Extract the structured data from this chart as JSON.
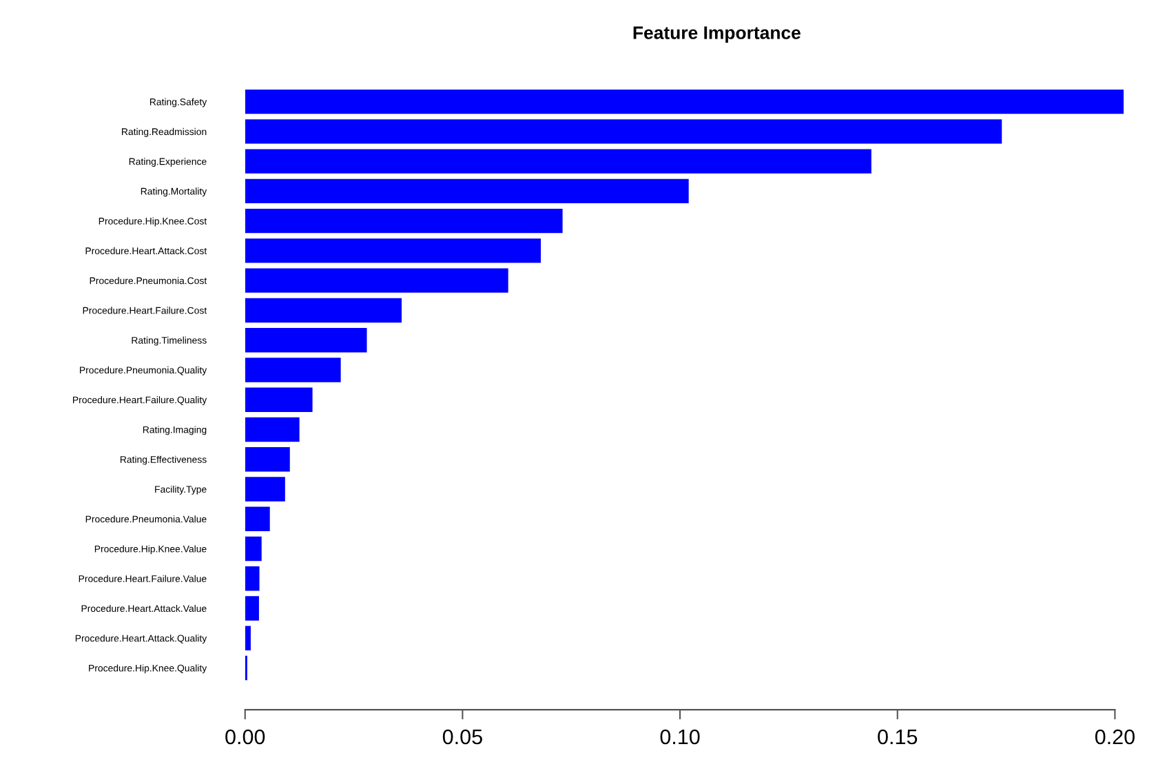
{
  "chart_data": {
    "type": "bar",
    "orientation": "horizontal",
    "title": "Feature Importance",
    "categories": [
      "Rating.Safety",
      "Rating.Readmission",
      "Rating.Experience",
      "Rating.Mortality",
      "Procedure.Hip.Knee.Cost",
      "Procedure.Heart.Attack.Cost",
      "Procedure.Pneumonia.Cost",
      "Procedure.Heart.Failure.Cost",
      "Rating.Timeliness",
      "Procedure.Pneumonia.Quality",
      "Procedure.Heart.Failure.Quality",
      "Rating.Imaging",
      "Rating.Effectiveness",
      "Facility.Type",
      "Procedure.Pneumonia.Value",
      "Procedure.Hip.Knee.Value",
      "Procedure.Heart.Failure.Value",
      "Procedure.Heart.Attack.Value",
      "Procedure.Heart.Attack.Quality",
      "Procedure.Hip.Knee.Quality"
    ],
    "values": [
      0.202,
      0.174,
      0.144,
      0.102,
      0.073,
      0.068,
      0.0605,
      0.036,
      0.028,
      0.022,
      0.0155,
      0.0125,
      0.0103,
      0.0092,
      0.0057,
      0.0038,
      0.0033,
      0.0032,
      0.0013,
      0.0005
    ],
    "color": "#0000ff",
    "xlim": [
      0,
      0.202
    ],
    "xticks": [
      {
        "value": 0,
        "label": "0.00"
      },
      0.05,
      {
        "value": 0.1,
        "label": "0.10"
      },
      0.15,
      {
        "value": 0.2,
        "label": "0.20"
      }
    ],
    "grid": false
  }
}
